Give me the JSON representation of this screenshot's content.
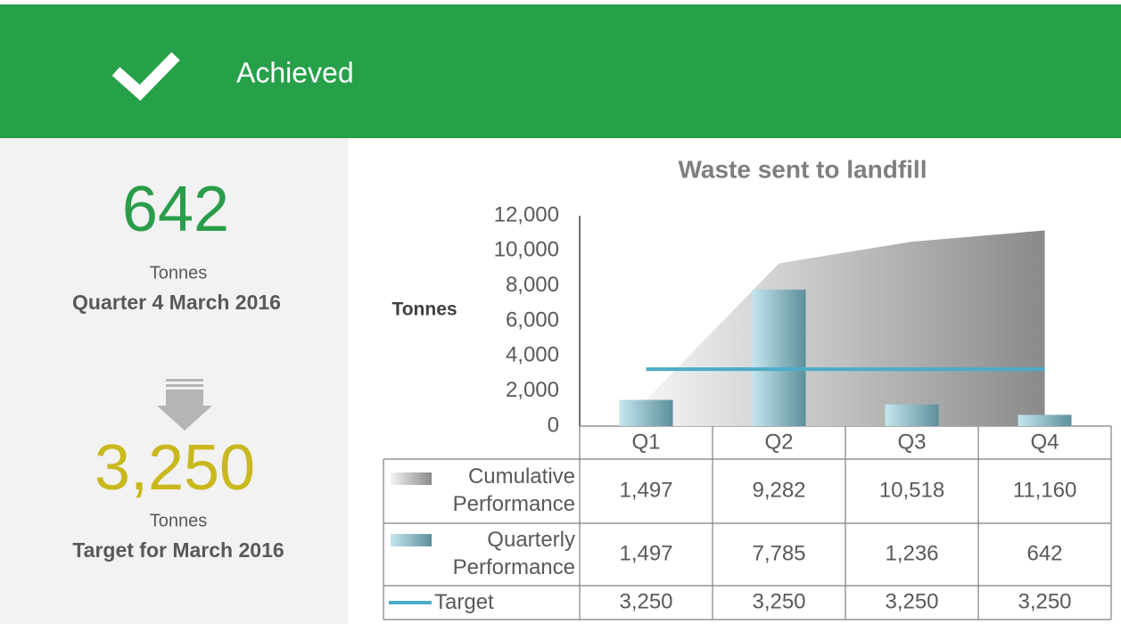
{
  "header": {
    "status": "Achieved"
  },
  "summary": {
    "current_value": "642",
    "current_unit": "Tonnes",
    "current_period": "Quarter 4 March 2016",
    "target_value": "3,250",
    "target_unit": "Tonnes",
    "target_period": "Target for March 2016"
  },
  "chart_data": {
    "type": "bar",
    "title": "Waste sent to landfill",
    "y_label": "Tonnes",
    "categories": [
      "Q1",
      "Q2",
      "Q3",
      "Q4"
    ],
    "ylim": [
      0,
      12000
    ],
    "yticks": [
      0,
      {
        "value": 2000,
        "label": "2,000"
      },
      {
        "value": 4000,
        "label": "4,000"
      },
      {
        "value": 6000,
        "label": "6,000"
      },
      {
        "value": 8000,
        "label": "8,000"
      },
      {
        "value": 10000,
        "label": "10,000"
      },
      {
        "value": 12000,
        "label": "12,000"
      }
    ],
    "series": [
      {
        "name": "Cumulative Performance",
        "type": "area",
        "color": "#9a9a9a",
        "values": [
          1497,
          9282,
          10518,
          11160
        ],
        "value_labels": [
          "1,497",
          "9,282",
          "10,518",
          "11,160"
        ]
      },
      {
        "name": "Quarterly Performance",
        "type": "bar",
        "color": "#7fb3c2",
        "values": [
          1497,
          7785,
          1236,
          642
        ],
        "value_labels": [
          "1,497",
          "7,785",
          "1,236",
          "642"
        ]
      },
      {
        "name": "Target",
        "type": "line",
        "color": "#4bacc6",
        "values": [
          3250,
          3250,
          3250,
          3250
        ],
        "value_labels": [
          "3,250",
          "3,250",
          "3,250",
          "3,250"
        ]
      }
    ]
  }
}
